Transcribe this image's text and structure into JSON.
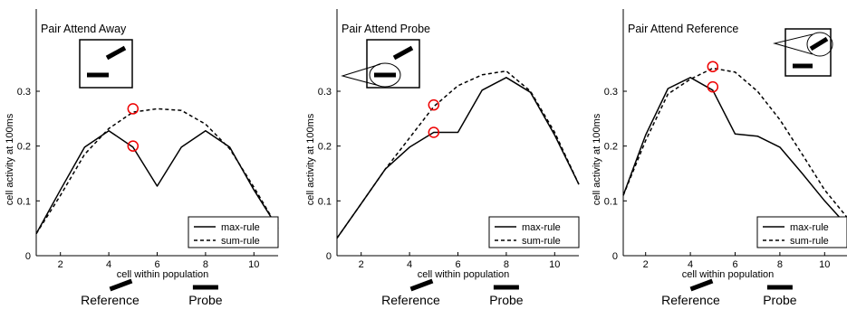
{
  "chart_data": [
    {
      "type": "line",
      "title": "Pair Attend Away",
      "xlabel": "cell within population",
      "ylabel": "cell activity at 100ms",
      "xlim": [
        1,
        11
      ],
      "ylim": [
        0,
        0.45
      ],
      "xticks": [
        "2",
        "4",
        "6",
        "8",
        "10"
      ],
      "yticks": [
        "0",
        "0.1",
        "0.2",
        "0.3"
      ],
      "series": [
        {
          "name": "max-rule",
          "style": "solid",
          "x": [
            1,
            2,
            3,
            4,
            5,
            6,
            7,
            8,
            9,
            10,
            11
          ],
          "y": [
            0.04,
            0.12,
            0.198,
            0.228,
            0.198,
            0.127,
            0.198,
            0.228,
            0.198,
            0.12,
            0.05
          ]
        },
        {
          "name": "sum-rule",
          "style": "dashed",
          "x": [
            1,
            2,
            3,
            4,
            5,
            6,
            7,
            8,
            9,
            10,
            11
          ],
          "y": [
            0.04,
            0.11,
            0.185,
            0.232,
            0.262,
            0.268,
            0.265,
            0.24,
            0.195,
            0.125,
            0.05
          ]
        }
      ],
      "markers": [
        {
          "x": 5,
          "y": 0.268
        },
        {
          "x": 5,
          "y": 0.2
        }
      ],
      "legend": "bottom-right",
      "bottom_labels": {
        "reference": "Reference",
        "probe": "Probe"
      }
    },
    {
      "type": "line",
      "title": "Pair Attend Probe",
      "xlabel": "cell within population",
      "ylabel": "cell activity at 100ms",
      "xlim": [
        1,
        11
      ],
      "ylim": [
        0,
        0.45
      ],
      "xticks": [
        "2",
        "4",
        "6",
        "8",
        "10"
      ],
      "yticks": [
        "0",
        "0.1",
        "0.2",
        "0.3"
      ],
      "series": [
        {
          "name": "max-rule",
          "style": "solid",
          "x": [
            1,
            2,
            3,
            4,
            5,
            6,
            7,
            8,
            9,
            10,
            11
          ],
          "y": [
            0.032,
            0.095,
            0.158,
            0.198,
            0.225,
            0.225,
            0.302,
            0.325,
            0.298,
            0.22,
            0.13
          ]
        },
        {
          "name": "sum-rule",
          "style": "dashed",
          "x": [
            1,
            2,
            3,
            4,
            5,
            6,
            7,
            8,
            9,
            10,
            11
          ],
          "y": [
            0.032,
            0.095,
            0.158,
            0.215,
            0.272,
            0.31,
            0.33,
            0.337,
            0.3,
            0.225,
            0.13
          ]
        }
      ],
      "markers": [
        {
          "x": 5,
          "y": 0.275
        },
        {
          "x": 5,
          "y": 0.225
        }
      ],
      "legend": "bottom-right",
      "bottom_labels": {
        "reference": "Reference",
        "probe": "Probe"
      }
    },
    {
      "type": "line",
      "title": "Pair Attend Reference",
      "xlabel": "cell within population",
      "ylabel": "cell activity at 100ms",
      "xlim": [
        1,
        11
      ],
      "ylim": [
        0,
        0.45
      ],
      "xticks": [
        "2",
        "4",
        "6",
        "8",
        "10"
      ],
      "yticks": [
        "0",
        "0.1",
        "0.2",
        "0.3"
      ],
      "series": [
        {
          "name": "max-rule",
          "style": "solid",
          "x": [
            1,
            2,
            3,
            4,
            5,
            6,
            7,
            8,
            9,
            10,
            11
          ],
          "y": [
            0.11,
            0.22,
            0.305,
            0.325,
            0.302,
            0.222,
            0.218,
            0.198,
            0.15,
            0.1,
            0.055
          ]
        },
        {
          "name": "sum-rule",
          "style": "dashed",
          "x": [
            1,
            2,
            3,
            4,
            5,
            6,
            7,
            8,
            9,
            10,
            11
          ],
          "y": [
            0.11,
            0.21,
            0.295,
            0.322,
            0.342,
            0.335,
            0.3,
            0.248,
            0.185,
            0.12,
            0.07
          ]
        }
      ],
      "markers": [
        {
          "x": 5,
          "y": 0.345
        },
        {
          "x": 5,
          "y": 0.308
        }
      ],
      "legend": "bottom-right",
      "bottom_labels": {
        "reference": "Reference",
        "probe": "Probe"
      }
    }
  ]
}
